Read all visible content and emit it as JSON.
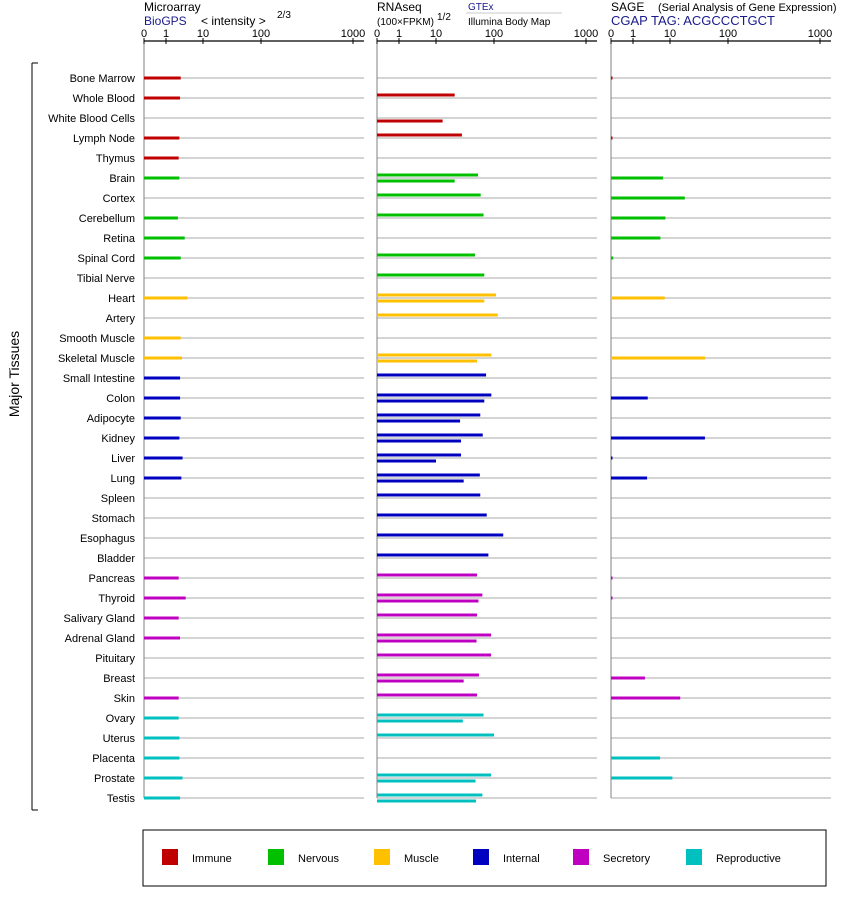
{
  "panels": {
    "microarray": {
      "title": "Microarray",
      "subtitle": "BioGPS",
      "scale_label": "< intensity >",
      "scale_exp": "2/3",
      "ticks": [
        "0",
        "1",
        "10",
        "100",
        "1000"
      ]
    },
    "rnaseq": {
      "title": "RNAseq",
      "scale_label": "(100×FPKM)",
      "scale_exp": "1/2",
      "source1": "GTEx",
      "source2": "Illumina Body Map",
      "ticks": [
        "0",
        "1",
        "10",
        "100",
        "1000"
      ]
    },
    "sage": {
      "title": "SAGE",
      "title_note": "(Serial Analysis of Gene Expression)",
      "subtitle": "CGAP TAG: ACGCCCTGCT",
      "ticks": [
        "0",
        "1",
        "10",
        "100",
        "1000"
      ]
    }
  },
  "group_label": "Major Tissues",
  "colors": {
    "Immune": "#c00000",
    "Nervous": "#00c000",
    "Muscle": "#ffc000",
    "Internal": "#0000c0",
    "Secretory": "#c000c0",
    "Reproductive": "#00c0c0"
  },
  "legend": [
    "Immune",
    "Nervous",
    "Muscle",
    "Internal",
    "Secretory",
    "Reproductive"
  ],
  "chart_data": {
    "type": "bar",
    "orientation": "horizontal",
    "x_axis_ticks": [
      0,
      1,
      10,
      100,
      1000
    ],
    "categories": [
      "Bone Marrow",
      "Whole Blood",
      "White Blood Cells",
      "Lymph Node",
      "Thymus",
      "Brain",
      "Cortex",
      "Cerebellum",
      "Retina",
      "Spinal Cord",
      "Tibial Nerve",
      "Heart",
      "Artery",
      "Smooth Muscle",
      "Skeletal Muscle",
      "Small Intestine",
      "Colon",
      "Adipocyte",
      "Kidney",
      "Liver",
      "Lung",
      "Spleen",
      "Stomach",
      "Esophagus",
      "Bladder",
      "Pancreas",
      "Thyroid",
      "Salivary Gland",
      "Adrenal Gland",
      "Pituitary",
      "Breast",
      "Skin",
      "Ovary",
      "Uterus",
      "Placenta",
      "Prostate",
      "Testis"
    ],
    "category_group": [
      "Immune",
      "Immune",
      "Immune",
      "Immune",
      "Immune",
      "Nervous",
      "Nervous",
      "Nervous",
      "Nervous",
      "Nervous",
      "Nervous",
      "Muscle",
      "Muscle",
      "Muscle",
      "Muscle",
      "Internal",
      "Internal",
      "Internal",
      "Internal",
      "Internal",
      "Internal",
      "Internal",
      "Internal",
      "Internal",
      "Internal",
      "Secretory",
      "Secretory",
      "Secretory",
      "Secretory",
      "Secretory",
      "Secretory",
      "Secretory",
      "Reproductive",
      "Reproductive",
      "Reproductive",
      "Reproductive",
      "Reproductive"
    ],
    "series": [
      {
        "name": "Microarray",
        "values": [
          2.5,
          2.4,
          null,
          2.3,
          2.2,
          2.3,
          null,
          2.1,
          3.2,
          2.5,
          null,
          3.8,
          null,
          2.5,
          2.7,
          2.4,
          2.4,
          2.5,
          2.3,
          2.8,
          2.6,
          null,
          null,
          null,
          null,
          2.2,
          3.4,
          2.2,
          2.4,
          null,
          null,
          2.2,
          2.2,
          2.3,
          2.3,
          2.8,
          2.4
        ]
      },
      {
        "name": "GTEx",
        "values": [
          null,
          21,
          null,
          28,
          null,
          53,
          59,
          66,
          null,
          47,
          68,
          105,
          110,
          null,
          90,
          73,
          90,
          58,
          64,
          27,
          57,
          58,
          75,
          126,
          80,
          51,
          63,
          51,
          89,
          89,
          55,
          51,
          66,
          100,
          null,
          89,
          63
        ]
      },
      {
        "name": "Illumina Body Map",
        "values": [
          null,
          null,
          13,
          null,
          null,
          21,
          null,
          null,
          null,
          null,
          null,
          68,
          null,
          null,
          51,
          null,
          68,
          26,
          27,
          10,
          30,
          null,
          null,
          null,
          null,
          null,
          54,
          null,
          50,
          null,
          30,
          null,
          29,
          null,
          null,
          48,
          49
        ]
      },
      {
        "name": "SAGE",
        "values": [
          0.05,
          null,
          null,
          0.05,
          null,
          6.5,
          18,
          7.5,
          5.5,
          0.1,
          null,
          7.2,
          null,
          null,
          40,
          null,
          2.5,
          null,
          40,
          0.05,
          2.4,
          null,
          null,
          null,
          null,
          0.05,
          0.05,
          null,
          null,
          null,
          2.1,
          15,
          null,
          null,
          5.4,
          11,
          null
        ]
      }
    ]
  }
}
